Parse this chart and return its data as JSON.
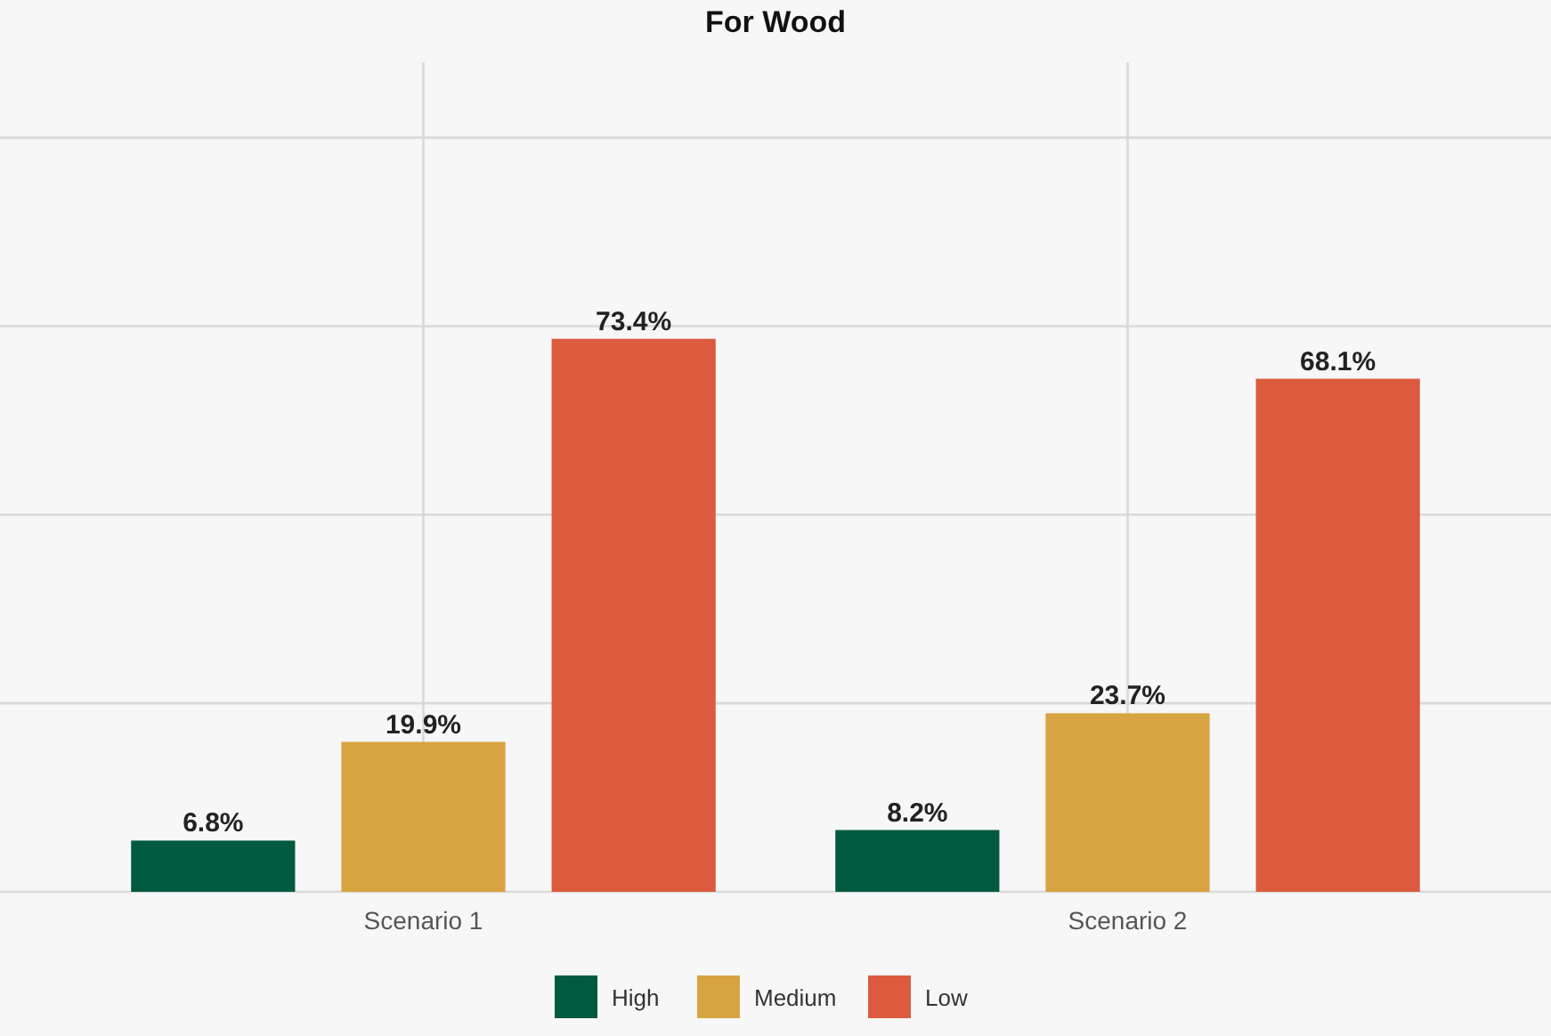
{
  "chart_data": {
    "type": "bar",
    "title": "For Wood",
    "categories": [
      "Scenario 1",
      "Scenario 2"
    ],
    "series": [
      {
        "name": "High",
        "color": "#005a40",
        "values": [
          6.8,
          8.2
        ],
        "value_labels": [
          "6.8%",
          "8.2%"
        ]
      },
      {
        "name": "Medium",
        "color": "#d8a441",
        "values": [
          19.9,
          23.7
        ],
        "value_labels": [
          "19.9%",
          "23.7%"
        ]
      },
      {
        "name": "Low",
        "color": "#dc5b3f",
        "values": [
          73.4,
          68.1
        ],
        "value_labels": [
          "73.4%",
          "68.1%"
        ]
      }
    ],
    "tick_labels": "x",
    "grid": true,
    "legend": "bottom"
  }
}
